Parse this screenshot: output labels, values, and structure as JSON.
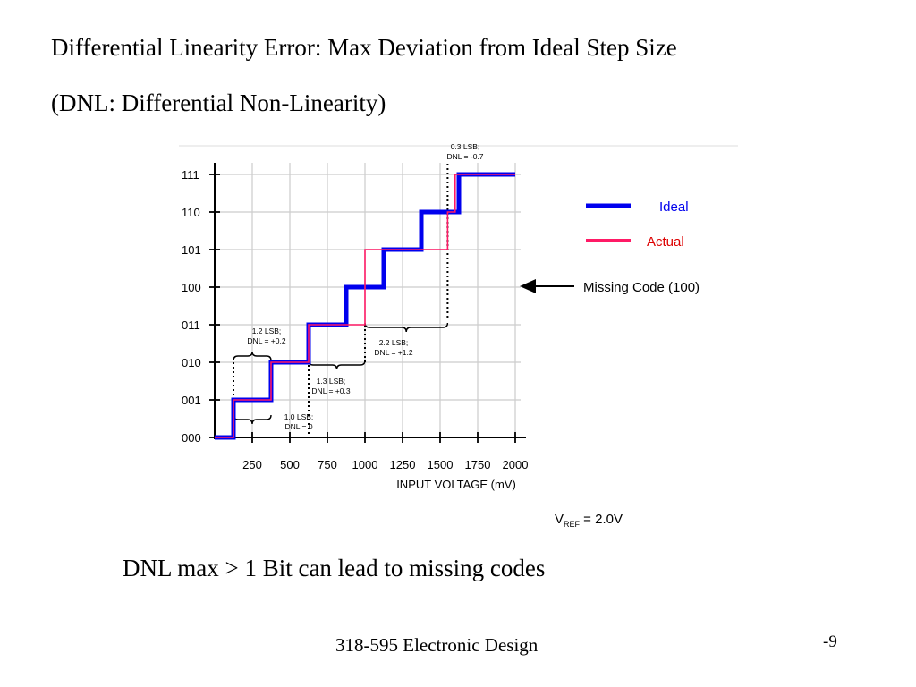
{
  "slide": {
    "title_line1": "Differential Linearity Error:  Max Deviation from Ideal Step Size",
    "title_line2": "(DNL: Differential Non-Linearity)",
    "caption": "DNL max > 1 Bit can lead to missing codes",
    "footer": "318-595 Electronic Design",
    "page_number": "-9"
  },
  "colors": {
    "ideal": "#0000ee",
    "actual": "#ff1a66",
    "grid": "#cccccc",
    "axis": "#000000"
  },
  "chart_data": {
    "type": "line",
    "xlabel": "INPUT VOLTAGE (mV)",
    "x_ticks": [
      250,
      500,
      750,
      1000,
      1250,
      1500,
      1750,
      2000
    ],
    "y_ticks": [
      "000",
      "001",
      "010",
      "011",
      "100",
      "101",
      "110",
      "111"
    ],
    "xlim": [
      0,
      2000
    ],
    "ylim": [
      0,
      7
    ],
    "grid": true,
    "legend_position": "right",
    "series": [
      {
        "name": "Ideal",
        "points": [
          [
            0,
            0
          ],
          [
            125,
            0
          ],
          [
            125,
            1
          ],
          [
            375,
            1
          ],
          [
            375,
            2
          ],
          [
            625,
            2
          ],
          [
            625,
            3
          ],
          [
            875,
            3
          ],
          [
            875,
            4
          ],
          [
            1125,
            4
          ],
          [
            1125,
            5
          ],
          [
            1375,
            5
          ],
          [
            1375,
            6
          ],
          [
            1625,
            6
          ],
          [
            1625,
            7
          ],
          [
            2000,
            7
          ]
        ]
      },
      {
        "name": "Actual",
        "points": [
          [
            0,
            0
          ],
          [
            125,
            0
          ],
          [
            125,
            1
          ],
          [
            375,
            1
          ],
          [
            375,
            2
          ],
          [
            625,
            2
          ],
          [
            625,
            3
          ],
          [
            1000,
            3
          ],
          [
            1000,
            5
          ],
          [
            1550,
            5
          ],
          [
            1550,
            6
          ],
          [
            1600,
            6
          ],
          [
            1600,
            7
          ],
          [
            2000,
            7
          ]
        ]
      }
    ],
    "annotations": [
      {
        "line1": "1.0 LSB;",
        "line2": "DNL = 0"
      },
      {
        "line1": "1.2 LSB;",
        "line2": "DNL = +0.2"
      },
      {
        "line1": "1.3 LSB;",
        "line2": "DNL = +0.3"
      },
      {
        "line1": "2.2 LSB;",
        "line2": "DNL = +1.2"
      },
      {
        "line1": "0.3 LSB;",
        "line2": "DNL = -0.7"
      }
    ],
    "missing_code_label": "Missing Code (100)",
    "vref": {
      "main": "V",
      "sub": "REF",
      "rest": " = 2.0V"
    }
  }
}
